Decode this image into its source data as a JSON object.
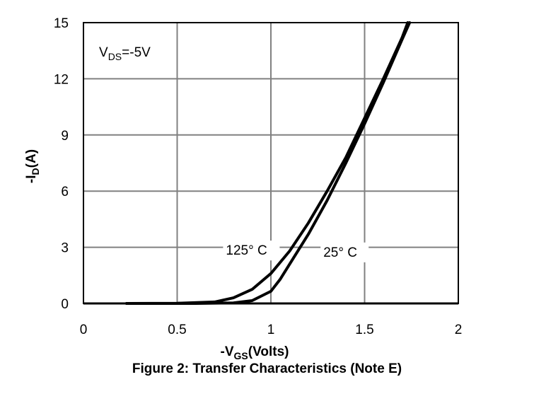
{
  "caption": "Figure 2: Transfer Characteristics (Note E)",
  "chart_data": {
    "type": "line",
    "xlabel": {
      "prefix": "-V",
      "sub": "GS",
      "suffix": "(Volts)"
    },
    "ylabel": {
      "prefix": "-I",
      "sub": "D",
      "suffix": "(A)"
    },
    "xlim": [
      0,
      2
    ],
    "ylim": [
      0,
      15
    ],
    "xticks": [
      {
        "value": 0,
        "label": "0"
      },
      {
        "value": 0.5,
        "label": "0.5"
      },
      {
        "value": 1,
        "label": "1"
      },
      {
        "value": 1.5,
        "label": "1.5"
      },
      {
        "value": 2,
        "label": "2"
      }
    ],
    "yticks": [
      {
        "value": 0,
        "label": "0"
      },
      {
        "value": 3,
        "label": "3"
      },
      {
        "value": 6,
        "label": "6"
      },
      {
        "value": 9,
        "label": "9"
      },
      {
        "value": 12,
        "label": "12"
      },
      {
        "value": 15,
        "label": "15"
      }
    ],
    "grid": true,
    "annotations": [
      {
        "text": "125° C",
        "x": 0.76,
        "y": 2.6
      },
      {
        "text": "25° C",
        "x": 1.28,
        "y": 2.5
      }
    ],
    "condition": {
      "prefix": "V",
      "sub": "DS",
      "suffix": "=-5V"
    },
    "series": [
      {
        "name": "125° C",
        "points": [
          [
            0.23,
            0
          ],
          [
            0.5,
            0.01
          ],
          [
            0.7,
            0.08
          ],
          [
            0.8,
            0.3
          ],
          [
            0.9,
            0.75
          ],
          [
            1.0,
            1.6
          ],
          [
            1.1,
            2.8
          ],
          [
            1.2,
            4.3
          ],
          [
            1.3,
            6.0
          ],
          [
            1.4,
            7.8
          ],
          [
            1.5,
            9.9
          ],
          [
            1.6,
            12.0
          ],
          [
            1.7,
            14.2
          ],
          [
            1.73,
            15
          ]
        ]
      },
      {
        "name": "25° C",
        "points": [
          [
            0.23,
            0
          ],
          [
            0.6,
            0.0
          ],
          [
            0.8,
            0.03
          ],
          [
            0.9,
            0.15
          ],
          [
            1.0,
            0.65
          ],
          [
            1.05,
            1.3
          ],
          [
            1.1,
            2.1
          ],
          [
            1.2,
            3.7
          ],
          [
            1.3,
            5.5
          ],
          [
            1.4,
            7.5
          ],
          [
            1.5,
            9.6
          ],
          [
            1.6,
            11.8
          ],
          [
            1.7,
            14.1
          ],
          [
            1.74,
            15
          ]
        ]
      }
    ]
  }
}
